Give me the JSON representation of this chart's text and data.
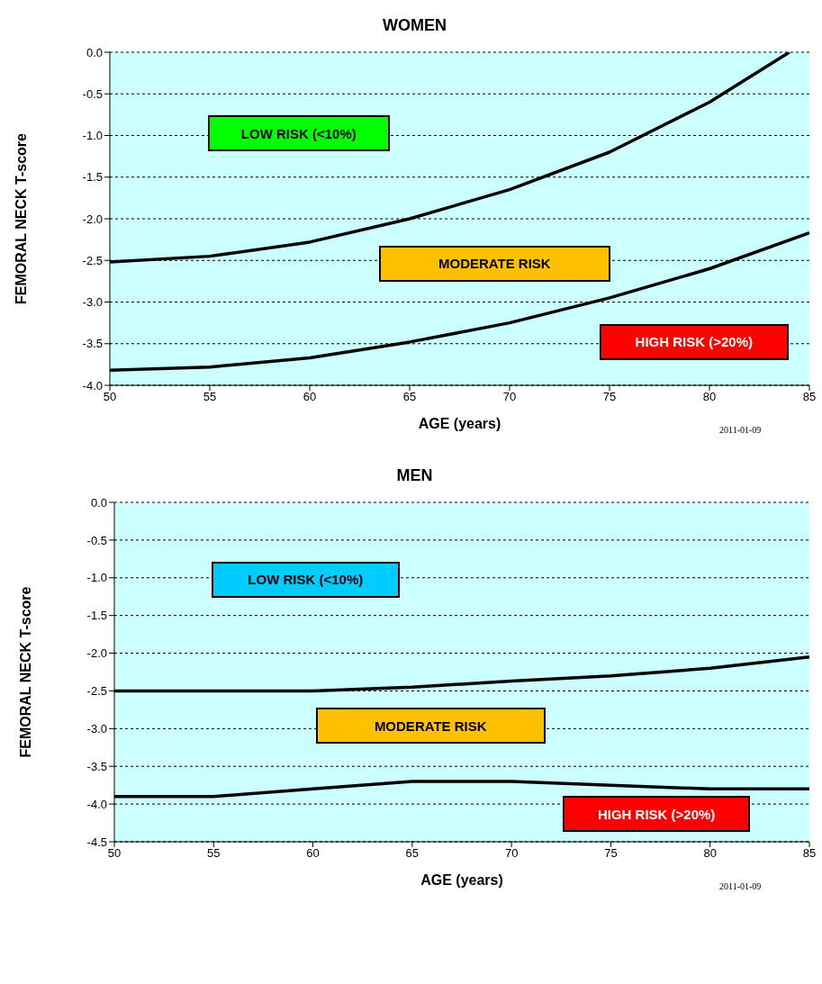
{
  "chart_data": [
    {
      "type": "line",
      "title": "WOMEN",
      "xlabel": "AGE (years)",
      "ylabel": "FEMORAL NECK T-score",
      "xlim": [
        50,
        85
      ],
      "xticks": [
        50,
        55,
        60,
        65,
        70,
        75,
        80,
        85
      ],
      "ylim": [
        -4,
        0
      ],
      "yticks": [
        {
          "value": 0,
          "label": "0.0"
        },
        -0.5,
        {
          "value": -1,
          "label": "-1.0"
        },
        -1.5,
        {
          "value": -2,
          "label": "-2.0"
        },
        -2.5,
        {
          "value": -3,
          "label": "-3.0"
        },
        -3.5,
        {
          "value": -4,
          "label": "-4.0"
        }
      ],
      "grid": "y",
      "legend": false,
      "marker": "none",
      "line_style": "solid",
      "series": [
        {
          "color": "#000000",
          "x": [
            50,
            55,
            60,
            65,
            70,
            75,
            80,
            84
          ],
          "values": [
            -2.52,
            -2.45,
            -2.28,
            -2.0,
            -1.65,
            -1.2,
            -0.6,
            0.0
          ]
        },
        {
          "color": "#000000",
          "x": [
            50,
            55,
            60,
            65,
            70,
            75,
            80,
            85
          ],
          "values": [
            -3.82,
            -3.78,
            -3.67,
            -3.48,
            -3.25,
            -2.95,
            -2.6,
            -2.17
          ]
        }
      ],
      "annotations": [
        "LOW RISK (<10%)",
        "MODERATE RISK",
        "HIGH RISK (>20%)",
        "2011-01-09"
      ]
    },
    {
      "type": "line",
      "title": "MEN",
      "xlabel": "AGE (years)",
      "ylabel": "FEMORAL NECK T-score",
      "xlim": [
        50,
        85
      ],
      "xticks": [
        50,
        55,
        60,
        65,
        70,
        75,
        80,
        85
      ],
      "ylim": [
        -4.5,
        0
      ],
      "yticks": [
        {
          "value": 0,
          "label": "0.0"
        },
        -0.5,
        {
          "value": -1,
          "label": "-1.0"
        },
        -1.5,
        {
          "value": -2,
          "label": "-2.0"
        },
        -2.5,
        {
          "value": -3,
          "label": "-3.0"
        },
        -3.5,
        {
          "value": -4,
          "label": "-4.0"
        },
        -4.5
      ],
      "grid": "y",
      "legend": false,
      "marker": "none",
      "line_style": "solid",
      "series": [
        {
          "color": "#000000",
          "x": [
            50,
            55,
            60,
            65,
            70,
            75,
            80,
            85
          ],
          "values": [
            -2.5,
            -2.5,
            -2.5,
            -2.45,
            -2.37,
            -2.3,
            -2.2,
            -2.05
          ]
        },
        {
          "color": "#000000",
          "x": [
            50,
            55,
            60,
            65,
            70,
            75,
            80,
            85
          ],
          "values": [
            -3.9,
            -3.9,
            -3.8,
            -3.7,
            -3.7,
            -3.75,
            -3.8,
            -3.8
          ]
        }
      ],
      "annotations": [
        "LOW RISK (<10%)",
        "MODERATE RISK",
        "HIGH RISK (>20%)",
        "2011-01-09"
      ]
    }
  ]
}
